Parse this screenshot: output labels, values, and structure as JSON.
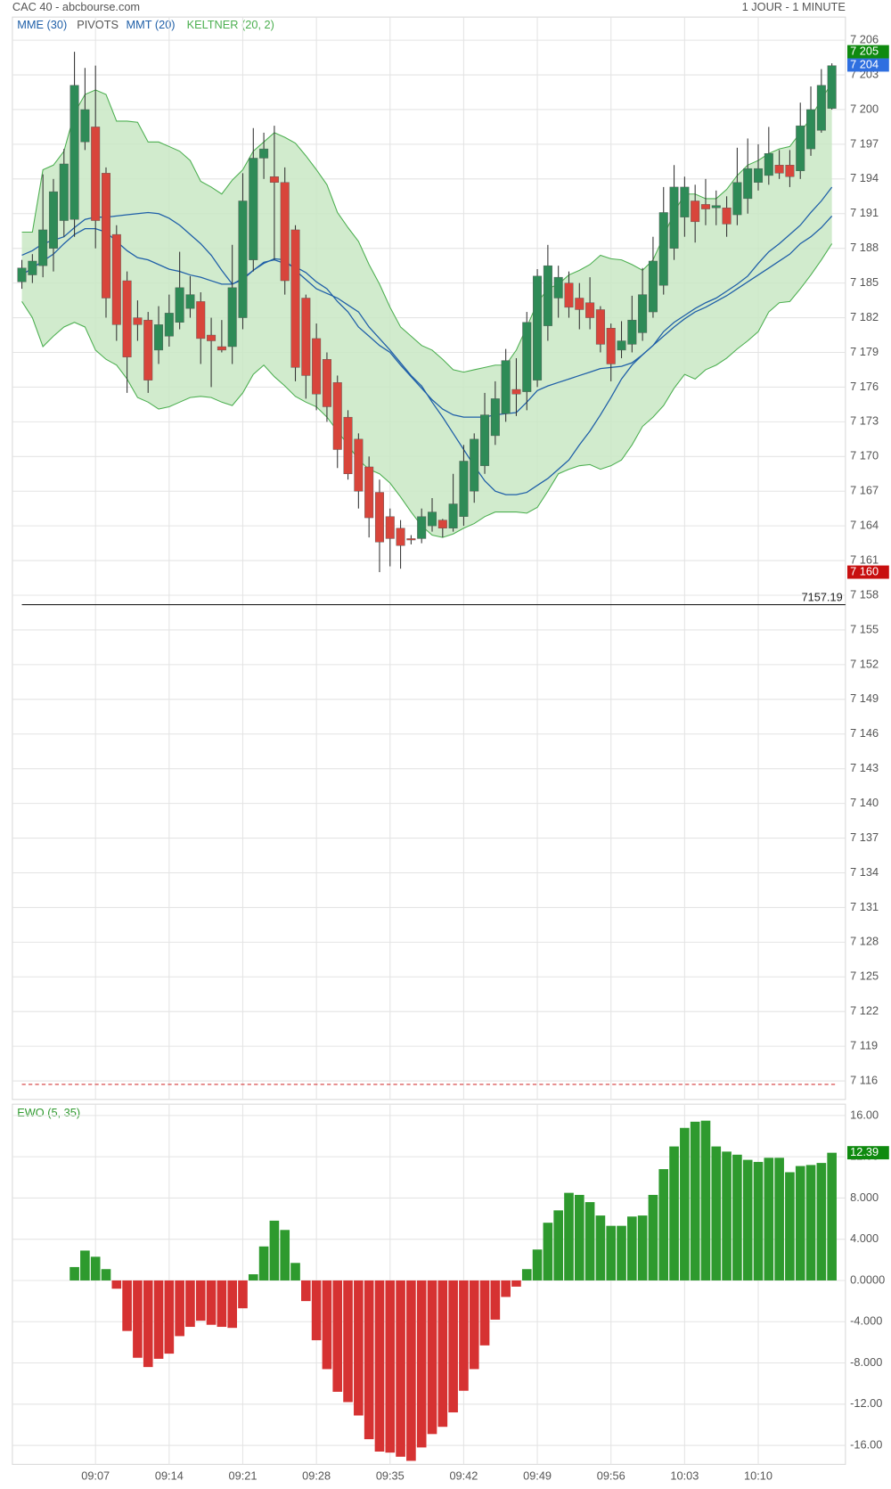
{
  "header": {
    "title": "CAC 40 - abcbourse.com",
    "period": "1 JOUR - 1 MINUTE"
  },
  "chart_data": [
    {
      "type": "candlestick",
      "up_color": "#2e8b57",
      "down_color": "#d8453b",
      "wick_color": "#333333",
      "open": [
        7185.1,
        7185.7,
        7186.5,
        7188,
        7190.4,
        7190.5,
        7197.2,
        7198.5,
        7194.5,
        7189.2,
        7185.2,
        7182,
        7181.8,
        7179.2,
        7180.4,
        7181.6,
        7182.8,
        7183.4,
        7180.5,
        7179.5,
        7179.5,
        7182,
        7187,
        7195.8,
        7194.2,
        7193.7,
        7189.6,
        7183.7,
        7180.2,
        7178.4,
        7176.4,
        7173.4,
        7171.5,
        7169.1,
        7166.9,
        7164.8,
        7163.8,
        7162.9,
        7162.9,
        7164,
        7164.5,
        7163.8,
        7164.8,
        7167,
        7169.2,
        7171.8,
        7173.7,
        7175.8,
        7175.6,
        7176.6,
        7181.3,
        7183.7,
        7185,
        7183.7,
        7183.3,
        7182.7,
        7181.1,
        7179.2,
        7179.7,
        7180.7,
        7182.5,
        7184.8,
        7188,
        7190.7,
        7192.1,
        7191.8,
        7191.5,
        7191.5,
        7190.9,
        7192.3,
        7193.7,
        7194.3,
        7195.2,
        7195.2,
        7194.7,
        7196.6,
        7198.2,
        7200.1
      ],
      "high": [
        7187,
        7187.5,
        7194.4,
        7194,
        7196.6,
        7205,
        7203.6,
        7203.8,
        7195,
        7190,
        7186,
        7183.5,
        7182.5,
        7183,
        7184,
        7187.7,
        7185.6,
        7184.2,
        7182,
        7181.8,
        7188.3,
        7194.5,
        7198.4,
        7198,
        7198.6,
        7195,
        7190,
        7184,
        7181.5,
        7179,
        7177,
        7174,
        7172,
        7170,
        7168,
        7165.5,
        7164.5,
        7163.2,
        7165.5,
        7166.4,
        7164.6,
        7168.5,
        7171,
        7172,
        7175.5,
        7176.5,
        7179.3,
        7178.5,
        7182.5,
        7186.2,
        7188.3,
        7186.5,
        7186,
        7185,
        7185.5,
        7183,
        7181.5,
        7181.7,
        7183.9,
        7186.3,
        7189,
        7193.3,
        7195.2,
        7194.2,
        7193.5,
        7194,
        7193,
        7192.5,
        7196.7,
        7197.5,
        7197,
        7198.5,
        7196.5,
        7196.5,
        7200.6,
        7202,
        7203.5,
        7204
      ],
      "low": [
        7184.5,
        7185,
        7185.5,
        7186,
        7189,
        7189,
        7196.5,
        7188,
        7182,
        7180,
        7175.5,
        7180,
        7175.5,
        7178,
        7179.5,
        7181,
        7182,
        7178,
        7176,
        7179,
        7178,
        7181,
        7186,
        7194,
        7187,
        7184,
        7176.5,
        7175,
        7174,
        7173,
        7169,
        7168,
        7165.5,
        7163,
        7160,
        7160.5,
        7160.3,
        7162.4,
        7162.5,
        7163.5,
        7163,
        7163.5,
        7164,
        7166,
        7168.5,
        7171,
        7173,
        7173.5,
        7174,
        7176,
        7180,
        7182,
        7182,
        7181,
        7181,
        7179,
        7176.5,
        7178.5,
        7179,
        7180,
        7182,
        7184,
        7187,
        7189,
        7188.5,
        7190,
        7190,
        7189,
        7190,
        7191,
        7193,
        7193.5,
        7194,
        7193.3,
        7194,
        7196,
        7198,
        7200
      ],
      "close": [
        7186.3,
        7186.9,
        7189.6,
        7192.9,
        7195.3,
        7202.1,
        7200,
        7190.4,
        7183.7,
        7181.4,
        7178.6,
        7181.4,
        7176.6,
        7181.4,
        7182.4,
        7184.6,
        7184,
        7180.2,
        7180,
        7179.2,
        7184.6,
        7192.1,
        7195.8,
        7196.6,
        7193.7,
        7185.2,
        7177.7,
        7177,
        7175.4,
        7174.3,
        7170.6,
        7168.5,
        7167,
        7164.7,
        7162.6,
        7162.9,
        7162.3,
        7162.8,
        7164.8,
        7165.2,
        7163.8,
        7165.9,
        7169.6,
        7171.5,
        7173.6,
        7175,
        7178.3,
        7175.4,
        7181.6,
        7185.6,
        7186.5,
        7185.5,
        7182.9,
        7182.7,
        7182,
        7179.7,
        7178,
        7180,
        7181.8,
        7184,
        7186.9,
        7191.1,
        7193.3,
        7193.3,
        7190.3,
        7191.4,
        7191.7,
        7190.1,
        7193.7,
        7194.9,
        7194.9,
        7196.2,
        7194.5,
        7194.2,
        7198.6,
        7200,
        7202.1,
        7203.8
      ],
      "series": [
        {
          "name": "MME (30)",
          "color": "#1f5fa8",
          "values": [
            7187.4,
            7187.8,
            7188.4,
            7188.7,
            7189.0,
            7189.8,
            7190.5,
            7190.7,
            7190.7,
            7190.8,
            7190.9,
            7191.0,
            7191.1,
            7191.0,
            7190.6,
            7190.0,
            7189.2,
            7188.4,
            7187.4,
            7186.1,
            7184.9,
            7185.3,
            7186.1,
            7186.8,
            7187.0,
            7186.7,
            7186.4,
            7185.9,
            7185.1,
            7184.5,
            7183.4,
            7182.5,
            7181.2,
            7180.4,
            7179.6,
            7179.0,
            7177.9,
            7176.9,
            7175.9,
            7174.9,
            7174.1,
            7173.6,
            7173.4,
            7173.4,
            7173.4,
            7173.6,
            7173.7,
            7173.8,
            7174.7,
            7175.7,
            7176.1,
            7176.4,
            7176.7,
            7177.0,
            7177.3,
            7177.6,
            7177.7,
            7177.8,
            7178.1,
            7178.8,
            7179.6,
            7180.8,
            7181.6,
            7182.2,
            7182.8,
            7183.3,
            7183.7,
            7184.3,
            7184.9,
            7185.6,
            7186.7,
            7187.7,
            7188.4,
            7189.2,
            7190.0,
            7191.1,
            7192.1,
            7193.3
          ]
        },
        {
          "name": "MMT (20)",
          "color": "#1f5fa8",
          "values": [
            7185.7,
            7186.3,
            7186.9,
            7187.5,
            7188.4,
            7189.2,
            7189.7,
            7189.7,
            7189.4,
            7188.6,
            7187.8,
            7187.2,
            7187.0,
            7186.6,
            7186.2,
            7186.0,
            7185.7,
            7185.5,
            7185.2,
            7184.9,
            7184.9,
            7185.4,
            7186.1,
            7186.7,
            7187.1,
            7187.0,
            7186.1,
            7185.3,
            7184.5,
            7184.1,
            7183.7,
            7183.1,
            7182.5,
            7181.2,
            7180.2,
            7179.2,
            7178.1,
            7177.0,
            7176.1,
            7174.7,
            7173.4,
            7172.0,
            7170.6,
            7169.2,
            7167.9,
            7167.0,
            7166.7,
            7166.7,
            7166.9,
            7167.5,
            7168.1,
            7168.9,
            7169.7,
            7171.0,
            7172.2,
            7173.6,
            7175.1,
            7176.7,
            7177.9,
            7178.8,
            7179.6,
            7180.4,
            7181.2,
            7181.9,
            7182.5,
            7182.9,
            7183.4,
            7183.9,
            7184.5,
            7185.1,
            7185.7,
            7186.3,
            7186.9,
            7187.5,
            7188.4,
            7189.0,
            7189.8,
            7190.8
          ]
        }
      ],
      "keltner": {
        "name": "KELTNER (20, 2)",
        "color": "#4caf50",
        "fill": "#c9e7c4",
        "upper": [
          7189.4,
          7189.4,
          7194.8,
          7195.2,
          7196.4,
          7199.7,
          7201.3,
          7201.7,
          7201.3,
          7199.0,
          7199.0,
          7198.9,
          7197.2,
          7197.2,
          7196.8,
          7196.4,
          7195.6,
          7193.8,
          7193.3,
          7192.7,
          7193.9,
          7194.8,
          7196.4,
          7197.2,
          7198.0,
          7197.6,
          7197.1,
          7196.0,
          7194.8,
          7193.5,
          7191.1,
          7189.8,
          7188.6,
          7186.6,
          7184.9,
          7182.9,
          7181.2,
          7180.4,
          7179.6,
          7179.2,
          7178.4,
          7177.5,
          7177.3,
          7177.5,
          7177.7,
          7177.9,
          7177.9,
          7179.2,
          7181.2,
          7183.3,
          7184.5,
          7184.9,
          7185.7,
          7186.1,
          7186.6,
          7187.4,
          7187.1,
          7187.0,
          7186.6,
          7186.1,
          7187.0,
          7189.0,
          7191.1,
          7192.7,
          7192.7,
          7192.3,
          7192.3,
          7193.1,
          7194.3,
          7195.2,
          7195.6,
          7196.2,
          7196.6,
          7196.8,
          7198.0,
          7199.3,
          7200.9,
          7202.3
        ],
        "lower": [
          7183.4,
          7182.0,
          7179.5,
          7180.4,
          7181.2,
          7181.6,
          7181.2,
          7179.2,
          7178.4,
          7177.9,
          7176.7,
          7175.1,
          7174.7,
          7174.1,
          7174.3,
          7174.7,
          7175.1,
          7175.2,
          7175.1,
          7174.7,
          7174.4,
          7175.5,
          7177.1,
          7177.9,
          7176.9,
          7176.1,
          7175.2,
          7174.7,
          7174.3,
          7173.4,
          7172.2,
          7171.0,
          7169.7,
          7168.9,
          7168.5,
          7167.7,
          7166.5,
          7165.2,
          7164.0,
          7163.2,
          7163.0,
          7163.3,
          7163.8,
          7164.2,
          7164.8,
          7165.2,
          7165.2,
          7165.2,
          7165.1,
          7165.6,
          7167.0,
          7168.5,
          7168.9,
          7169.2,
          7169.3,
          7168.9,
          7169.2,
          7169.7,
          7171.0,
          7172.6,
          7173.4,
          7174.4,
          7175.9,
          7177.1,
          7176.7,
          7177.5,
          7177.9,
          7178.5,
          7179.3,
          7180.0,
          7180.8,
          7182.5,
          7183.3,
          7183.4,
          7184.5,
          7185.7,
          7187.0,
          7188.4
        ]
      },
      "pivot": {
        "name": "PIVOTS",
        "value": 7115.7,
        "color": "#d33a3a"
      },
      "reference_line": 7157.19,
      "price_tags": [
        {
          "value": 7205,
          "label": "7 205",
          "color": "#0f8a0f"
        },
        {
          "value": 7204,
          "label": "7 204",
          "color": "#2f6fe0"
        },
        {
          "value": 7160,
          "label": "7 160",
          "color": "#c80f0f"
        }
      ],
      "ylim": [
        7114.4,
        7208.0
      ],
      "yticks": [
        {
          "value": 7206,
          "label": "7 206"
        },
        {
          "value": 7203,
          "label": "7 203"
        },
        {
          "value": 7200,
          "label": "7 200"
        },
        {
          "value": 7197,
          "label": "7 197"
        },
        {
          "value": 7194,
          "label": "7 194"
        },
        {
          "value": 7191,
          "label": "7 191"
        },
        {
          "value": 7188,
          "label": "7 188"
        },
        {
          "value": 7185,
          "label": "7 185"
        },
        {
          "value": 7182,
          "label": "7 182"
        },
        {
          "value": 7179,
          "label": "7 179"
        },
        {
          "value": 7176,
          "label": "7 176"
        },
        {
          "value": 7173,
          "label": "7 173"
        },
        {
          "value": 7170,
          "label": "7 170"
        },
        {
          "value": 7167,
          "label": "7 167"
        },
        {
          "value": 7164,
          "label": "7 164"
        },
        {
          "value": 7161,
          "label": "7 161"
        },
        {
          "value": 7158,
          "label": "7 158"
        },
        {
          "value": 7155,
          "label": "7 155"
        },
        {
          "value": 7152,
          "label": "7 152"
        },
        {
          "value": 7149,
          "label": "7 149"
        },
        {
          "value": 7146,
          "label": "7 146"
        },
        {
          "value": 7143,
          "label": "7 143"
        },
        {
          "value": 7140,
          "label": "7 140"
        },
        {
          "value": 7137,
          "label": "7 137"
        },
        {
          "value": 7134,
          "label": "7 134"
        },
        {
          "value": 7131,
          "label": "7 131"
        },
        {
          "value": 7128,
          "label": "7 128"
        },
        {
          "value": 7125,
          "label": "7 125"
        },
        {
          "value": 7122,
          "label": "7 122"
        },
        {
          "value": 7119,
          "label": "7 119"
        },
        {
          "value": 7116,
          "label": "7 116"
        }
      ],
      "grid": true
    },
    {
      "type": "bar",
      "title": "EWO (5, 35)",
      "title_color": "#2e9a2e",
      "categories": [
        null,
        null,
        null,
        null,
        null,
        null,
        null,
        "09:07",
        null,
        null,
        null,
        null,
        null,
        null,
        "09:14",
        null,
        null,
        null,
        null,
        null,
        null,
        "09:21",
        null,
        null,
        null,
        null,
        null,
        null,
        "09:28",
        null,
        null,
        null,
        null,
        null,
        null,
        "09:35",
        null,
        null,
        null,
        null,
        null,
        null,
        "09:42",
        null,
        null,
        null,
        null,
        null,
        null,
        "09:49",
        null,
        null,
        null,
        null,
        null,
        null,
        "09:56",
        null,
        null,
        null,
        null,
        null,
        null,
        "10:03",
        null,
        null,
        null,
        null,
        null,
        null,
        "10:10",
        null,
        null,
        null,
        null,
        null,
        null,
        null
      ],
      "values": [
        null,
        null,
        null,
        null,
        null,
        1.3,
        2.9,
        2.3,
        1.1,
        -0.8,
        -4.9,
        -7.5,
        -8.4,
        -7.6,
        -7.1,
        -5.4,
        -4.5,
        -3.9,
        -4.3,
        -4.5,
        -4.6,
        -2.7,
        0.6,
        3.3,
        5.8,
        4.9,
        1.7,
        -2.0,
        -5.8,
        -8.6,
        -10.8,
        -11.8,
        -13.1,
        -15.4,
        -16.6,
        -16.7,
        -17.1,
        -17.5,
        -16.2,
        -14.9,
        -14.2,
        -12.8,
        -10.7,
        -8.6,
        -6.3,
        -3.8,
        -1.6,
        -0.6,
        1.1,
        3.0,
        5.6,
        6.8,
        8.5,
        8.3,
        7.6,
        6.3,
        5.3,
        5.3,
        6.2,
        6.3,
        8.3,
        10.8,
        13.0,
        14.8,
        15.4,
        15.5,
        13.0,
        12.5,
        12.2,
        11.7,
        11.5,
        11.9,
        11.9,
        10.5,
        11.1,
        11.2,
        11.4,
        12.39
      ],
      "positive_color": "#2e9a2e",
      "negative_color": "#d63232",
      "last_value_tag": 12.39,
      "tag_color": "#0f8a0f",
      "ylim": [
        -17.84,
        17.1
      ],
      "yticks": [
        {
          "value": 16,
          "label": "16.00"
        },
        {
          "value": 12,
          "label": "12.00"
        },
        {
          "value": 8,
          "label": "8.000"
        },
        {
          "value": 4,
          "label": "4.000"
        },
        {
          "value": 0,
          "label": "0.0000"
        },
        {
          "value": -4,
          "label": "-4.000"
        },
        {
          "value": -8,
          "label": "-8.000"
        },
        {
          "value": -12,
          "label": "-12.00"
        },
        {
          "value": -16,
          "label": "-16.00"
        }
      ],
      "grid": true
    }
  ]
}
